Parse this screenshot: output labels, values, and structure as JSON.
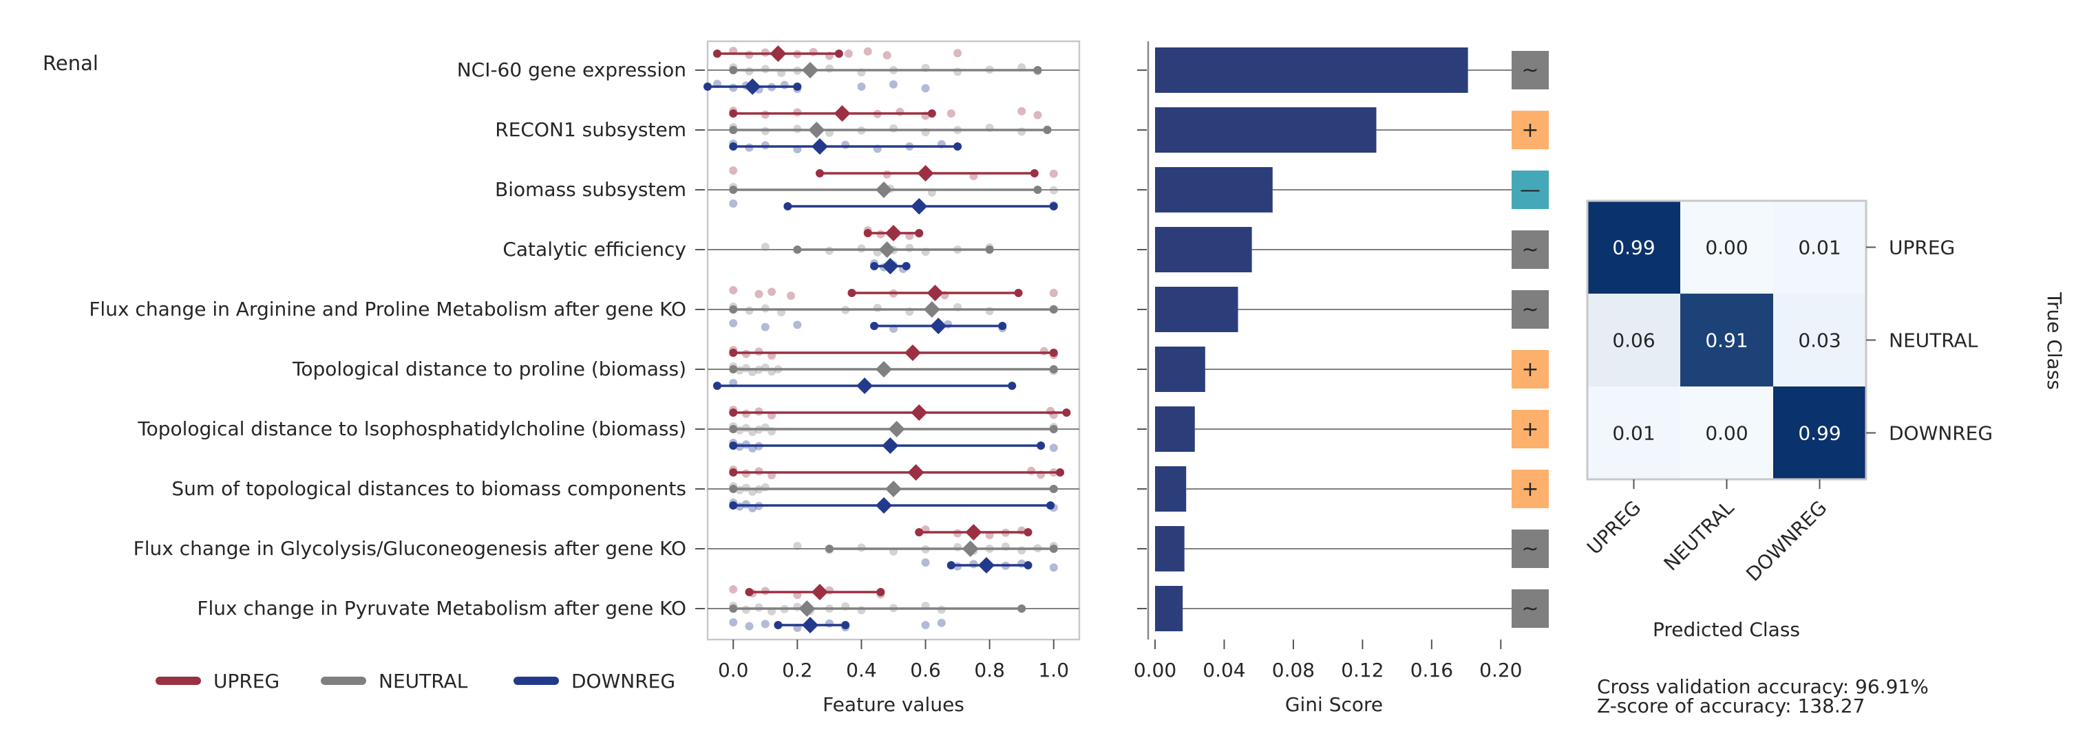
{
  "panel_label": "Renal",
  "colors": {
    "UPREG": "#9b3042",
    "NEUTRAL": "#808080",
    "DOWNREG": "#233a8c",
    "bar": "#2c3e7a",
    "plus": "#fdb06b",
    "minus": "#45a8b8",
    "tilde": "#7f7f7f"
  },
  "legend": [
    {
      "label": "UPREG",
      "color": "#9b3042"
    },
    {
      "label": "NEUTRAL",
      "color": "#808080"
    },
    {
      "label": "DOWNREG",
      "color": "#233a8c"
    }
  ],
  "footer": {
    "accuracy": "Cross validation accuracy: 96.91%",
    "zscore": "Z-score of accuracy: 138.27"
  },
  "chart_data": [
    {
      "type": "scatter",
      "name": "feature_values_strip",
      "xlabel": "Feature values",
      "xlim": [
        -0.08,
        1.08
      ],
      "xticks": [
        "0.0",
        "0.2",
        "0.4",
        "0.6",
        "0.8",
        "1.0"
      ],
      "features": [
        "NCI-60 gene expression",
        "RECON1 subsystem",
        "Biomass subsystem",
        "Catalytic efficiency",
        "Flux change in Arginine and Proline Metabolism after gene KO",
        "Topological distance to proline (biomass)",
        "Topological distance to lsophosphatidylcholine (biomass)",
        "Sum of topological distances to biomass components",
        "Flux change in Glycolysis/Gluconeogenesis after gene KO",
        "Flux change in Pyruvate Metabolism after gene KO"
      ],
      "series": [
        {
          "name": "UPREG",
          "mean": [
            0.14,
            0.34,
            0.6,
            0.5,
            0.63,
            0.56,
            0.58,
            0.57,
            0.75,
            0.27
          ],
          "range": [
            [
              -0.05,
              0.33
            ],
            [
              0.0,
              0.62
            ],
            [
              0.27,
              0.94
            ],
            [
              0.42,
              0.58
            ],
            [
              0.37,
              0.89
            ],
            [
              0.0,
              1.0
            ],
            [
              0.0,
              1.04
            ],
            [
              0.0,
              1.02
            ],
            [
              0.58,
              0.92
            ],
            [
              0.05,
              0.46
            ]
          ],
          "points": [
            [
              0.0,
              0.05,
              0.1,
              0.14,
              0.2,
              0.25,
              0.3,
              0.36,
              0.42,
              0.48,
              0.7
            ],
            [
              0.0,
              0.1,
              0.2,
              0.34,
              0.45,
              0.52,
              0.6,
              0.68,
              0.9,
              0.95
            ],
            [
              0.0,
              0.48,
              0.6,
              0.75,
              1.0
            ],
            [
              0.42,
              0.46,
              0.5,
              0.55,
              0.58
            ],
            [
              0.0,
              0.08,
              0.12,
              0.18,
              0.5,
              0.63,
              0.66,
              1.0
            ],
            [
              0.0,
              0.04,
              0.08,
              0.12,
              0.56,
              0.97,
              1.0
            ],
            [
              0.0,
              0.04,
              0.08,
              0.12,
              0.58,
              0.99,
              1.0
            ],
            [
              0.0,
              0.04,
              0.08,
              0.12,
              0.57,
              0.93,
              0.96,
              1.0
            ],
            [
              0.6,
              0.7,
              0.75,
              0.8,
              0.85,
              0.9
            ],
            [
              0.0,
              0.06,
              0.1,
              0.2,
              0.27,
              0.3,
              0.46
            ]
          ]
        },
        {
          "name": "NEUTRAL",
          "mean": [
            0.24,
            0.26,
            0.47,
            0.48,
            0.62,
            0.47,
            0.51,
            0.5,
            0.74,
            0.23
          ],
          "range": [
            [
              0.0,
              0.95
            ],
            [
              0.0,
              0.98
            ],
            [
              0.0,
              0.95
            ],
            [
              0.2,
              0.8
            ],
            [
              0.0,
              1.0
            ],
            [
              0.0,
              1.0
            ],
            [
              0.0,
              1.0
            ],
            [
              0.0,
              1.0
            ],
            [
              0.3,
              1.0
            ],
            [
              0.0,
              0.9
            ]
          ],
          "points": [
            [
              0.0,
              0.05,
              0.1,
              0.15,
              0.2,
              0.3,
              0.4,
              0.5,
              0.6,
              0.7,
              0.8,
              0.9,
              0.95
            ],
            [
              0.0,
              0.1,
              0.2,
              0.3,
              0.4,
              0.5,
              0.6,
              0.7,
              0.8,
              0.9,
              0.98
            ],
            [
              0.0,
              0.47,
              0.49,
              0.62,
              1.0
            ],
            [
              0.1,
              0.3,
              0.4,
              0.45,
              0.5,
              0.55,
              0.6,
              0.7,
              0.8
            ],
            [
              0.0,
              0.05,
              0.1,
              0.15,
              0.35,
              0.45,
              0.55,
              0.62,
              0.7,
              0.8,
              1.0
            ],
            [
              0.0,
              0.02,
              0.04,
              0.06,
              0.08,
              0.1,
              0.12,
              0.14,
              0.47,
              1.0
            ],
            [
              0.0,
              0.02,
              0.04,
              0.06,
              0.08,
              0.1,
              0.12,
              0.51,
              1.0
            ],
            [
              0.0,
              0.02,
              0.04,
              0.06,
              0.08,
              0.1,
              0.5,
              1.0
            ],
            [
              0.2,
              0.3,
              0.4,
              0.5,
              0.6,
              0.7,
              0.75,
              0.8,
              0.85,
              0.9,
              0.95,
              1.0
            ],
            [
              0.0,
              0.04,
              0.08,
              0.12,
              0.16,
              0.2,
              0.24,
              0.3,
              0.35,
              0.4,
              0.5,
              0.6,
              0.65
            ]
          ]
        },
        {
          "name": "DOWNREG",
          "mean": [
            0.06,
            0.27,
            0.58,
            0.49,
            0.64,
            0.41,
            0.49,
            0.47,
            0.79,
            0.24
          ],
          "range": [
            [
              -0.08,
              0.2
            ],
            [
              0.0,
              0.7
            ],
            [
              0.17,
              1.0
            ],
            [
              0.44,
              0.54
            ],
            [
              0.44,
              0.84
            ],
            [
              -0.05,
              0.87
            ],
            [
              0.0,
              0.96
            ],
            [
              0.0,
              0.99
            ],
            [
              0.68,
              0.92
            ],
            [
              0.14,
              0.35
            ]
          ],
          "points": [
            [
              -0.05,
              0.0,
              0.04,
              0.08,
              0.12,
              0.16,
              0.2,
              0.4,
              0.5,
              0.6
            ],
            [
              0.0,
              0.05,
              0.1,
              0.2,
              0.27,
              0.35,
              0.45,
              0.55,
              0.65
            ],
            [
              0.0,
              0.58,
              1.0
            ],
            [
              0.44,
              0.47,
              0.5,
              0.53
            ],
            [
              0.0,
              0.1,
              0.2,
              0.5,
              0.64,
              0.67,
              0.84
            ],
            [
              0.0,
              0.41
            ],
            [
              0.0,
              0.02,
              0.04,
              0.06,
              0.08,
              0.49,
              1.0
            ],
            [
              0.0,
              0.02,
              0.04,
              0.06,
              0.08,
              0.47,
              1.0
            ],
            [
              0.6,
              0.7,
              0.75,
              0.79,
              0.85,
              0.9,
              1.0
            ],
            [
              0.0,
              0.05,
              0.1,
              0.2,
              0.24,
              0.3,
              0.35,
              0.6,
              0.65
            ]
          ]
        }
      ]
    },
    {
      "type": "bar",
      "name": "gini",
      "xlabel": "Gini Score",
      "xlim": [
        0.0,
        0.215
      ],
      "xticks": [
        "0.00",
        "0.04",
        "0.08",
        "0.12",
        "0.16",
        "0.20"
      ],
      "values": [
        0.181,
        0.128,
        0.068,
        0.056,
        0.048,
        0.029,
        0.023,
        0.018,
        0.017,
        0.016
      ],
      "direction": [
        "~",
        "+",
        "—",
        "~",
        "~",
        "+",
        "+",
        "+",
        "~",
        "~"
      ]
    },
    {
      "type": "heatmap",
      "name": "confusion_matrix",
      "xlabel": "Predicted Class",
      "ylabel": "True Class",
      "x_labels": [
        "UPREG",
        "NEUTRAL",
        "DOWNREG"
      ],
      "y_labels": [
        "UPREG",
        "NEUTRAL",
        "DOWNREG"
      ],
      "values": [
        [
          "0.99",
          "0.00",
          "0.01"
        ],
        [
          "0.06",
          "0.91",
          "0.03"
        ],
        [
          "0.01",
          "0.00",
          "0.99"
        ]
      ]
    }
  ]
}
